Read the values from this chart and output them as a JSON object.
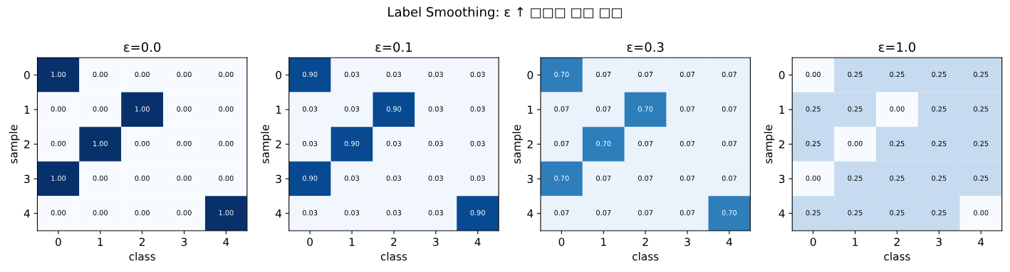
{
  "chart_data": [
    {
      "type": "heatmap",
      "title": "ε=0.0",
      "xlabel": "class",
      "ylabel": "sample",
      "categories": [
        "0",
        "1",
        "2",
        "3",
        "4"
      ],
      "y_categories": [
        "0",
        "1",
        "2",
        "3",
        "4"
      ],
      "annotations": [
        "Label Smoothing: ε ↑ □□□ □□ □□"
      ],
      "cells": [
        [
          1.0,
          0.0,
          0.0,
          0.0,
          0.0
        ],
        [
          0.0,
          0.0,
          1.0,
          0.0,
          0.0
        ],
        [
          0.0,
          1.0,
          0.0,
          0.0,
          0.0
        ],
        [
          1.0,
          0.0,
          0.0,
          0.0,
          0.0
        ],
        [
          0.0,
          0.0,
          0.0,
          0.0,
          1.0
        ]
      ],
      "cell_labels": [
        [
          "1.00",
          "0.00",
          "0.00",
          "0.00",
          "0.00"
        ],
        [
          "0.00",
          "0.00",
          "1.00",
          "0.00",
          "0.00"
        ],
        [
          "0.00",
          "1.00",
          "0.00",
          "0.00",
          "0.00"
        ],
        [
          "1.00",
          "0.00",
          "0.00",
          "0.00",
          "0.00"
        ],
        [
          "0.00",
          "0.00",
          "0.00",
          "0.00",
          "1.00"
        ]
      ]
    },
    {
      "type": "heatmap",
      "title": "ε=0.1",
      "xlabel": "class",
      "ylabel": "sample",
      "categories": [
        "0",
        "1",
        "2",
        "3",
        "4"
      ],
      "y_categories": [
        "0",
        "1",
        "2",
        "3",
        "4"
      ],
      "cells": [
        [
          0.9,
          0.03,
          0.03,
          0.03,
          0.03
        ],
        [
          0.03,
          0.03,
          0.9,
          0.03,
          0.03
        ],
        [
          0.03,
          0.9,
          0.03,
          0.03,
          0.03
        ],
        [
          0.9,
          0.03,
          0.03,
          0.03,
          0.03
        ],
        [
          0.03,
          0.03,
          0.03,
          0.03,
          0.9
        ]
      ],
      "cell_labels": [
        [
          "0.90",
          "0.03",
          "0.03",
          "0.03",
          "0.03"
        ],
        [
          "0.03",
          "0.03",
          "0.90",
          "0.03",
          "0.03"
        ],
        [
          "0.03",
          "0.90",
          "0.03",
          "0.03",
          "0.03"
        ],
        [
          "0.90",
          "0.03",
          "0.03",
          "0.03",
          "0.03"
        ],
        [
          "0.03",
          "0.03",
          "0.03",
          "0.03",
          "0.90"
        ]
      ]
    },
    {
      "type": "heatmap",
      "title": "ε=0.3",
      "xlabel": "class",
      "ylabel": "sample",
      "categories": [
        "0",
        "1",
        "2",
        "3",
        "4"
      ],
      "y_categories": [
        "0",
        "1",
        "2",
        "3",
        "4"
      ],
      "cells": [
        [
          0.7,
          0.07,
          0.07,
          0.07,
          0.07
        ],
        [
          0.07,
          0.07,
          0.7,
          0.07,
          0.07
        ],
        [
          0.07,
          0.7,
          0.07,
          0.07,
          0.07
        ],
        [
          0.7,
          0.07,
          0.07,
          0.07,
          0.07
        ],
        [
          0.07,
          0.07,
          0.07,
          0.07,
          0.7
        ]
      ],
      "cell_labels": [
        [
          "0.70",
          "0.07",
          "0.07",
          "0.07",
          "0.07"
        ],
        [
          "0.07",
          "0.07",
          "0.70",
          "0.07",
          "0.07"
        ],
        [
          "0.07",
          "0.70",
          "0.07",
          "0.07",
          "0.07"
        ],
        [
          "0.70",
          "0.07",
          "0.07",
          "0.07",
          "0.07"
        ],
        [
          "0.07",
          "0.07",
          "0.07",
          "0.07",
          "0.70"
        ]
      ]
    },
    {
      "type": "heatmap",
      "title": "ε=1.0",
      "xlabel": "class",
      "ylabel": "sample",
      "categories": [
        "0",
        "1",
        "2",
        "3",
        "4"
      ],
      "y_categories": [
        "0",
        "1",
        "2",
        "3",
        "4"
      ],
      "cells": [
        [
          0.0,
          0.25,
          0.25,
          0.25,
          0.25
        ],
        [
          0.25,
          0.25,
          0.0,
          0.25,
          0.25
        ],
        [
          0.25,
          0.0,
          0.25,
          0.25,
          0.25
        ],
        [
          0.0,
          0.25,
          0.25,
          0.25,
          0.25
        ],
        [
          0.25,
          0.25,
          0.25,
          0.25,
          0.0
        ]
      ],
      "cell_labels": [
        [
          "0.00",
          "0.25",
          "0.25",
          "0.25",
          "0.25"
        ],
        [
          "0.25",
          "0.25",
          "0.00",
          "0.25",
          "0.25"
        ],
        [
          "0.25",
          "0.00",
          "0.25",
          "0.25",
          "0.25"
        ],
        [
          "0.00",
          "0.25",
          "0.25",
          "0.25",
          "0.25"
        ],
        [
          "0.25",
          "0.25",
          "0.25",
          "0.25",
          "0.00"
        ]
      ]
    }
  ]
}
